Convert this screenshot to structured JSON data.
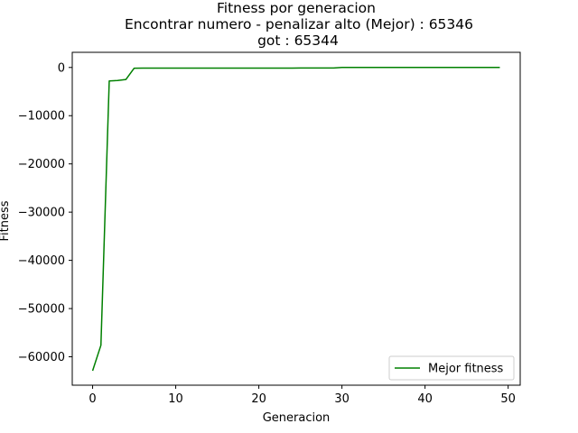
{
  "chart_data": {
    "type": "line",
    "title_lines": [
      "Fitness por generacion",
      "Encontrar numero - penalizar alto (Mejor) : 65346",
      "got : 65344"
    ],
    "xlabel": "Generacion",
    "ylabel": "Fitness",
    "xlim": [
      -2.45,
      51.45
    ],
    "ylim": [
      -65890,
      3140
    ],
    "xticks": [
      0,
      10,
      20,
      30,
      40,
      50
    ],
    "yticks": [
      0,
      -10000,
      -20000,
      -30000,
      -40000,
      -50000,
      -60000
    ],
    "xtick_labels": [
      "0",
      "10",
      "20",
      "30",
      "40",
      "50"
    ],
    "ytick_labels": [
      "0",
      "−10000",
      "−20000",
      "−30000",
      "−40000",
      "−50000",
      "−60000"
    ],
    "grid": false,
    "legend_position": "lower-right",
    "series": [
      {
        "name": "Mejor fitness",
        "color": "#008000",
        "x": [
          0,
          1,
          2,
          3,
          4,
          5,
          6,
          7,
          8,
          9,
          10,
          11,
          12,
          13,
          14,
          15,
          16,
          17,
          18,
          19,
          20,
          21,
          22,
          23,
          24,
          25,
          26,
          27,
          28,
          29,
          30,
          31,
          32,
          33,
          34,
          35,
          36,
          37,
          38,
          39,
          40,
          41,
          42,
          43,
          44,
          45,
          46,
          47,
          48,
          49
        ],
        "y": [
          -62900,
          -57600,
          -2800,
          -2700,
          -2500,
          -150,
          -140,
          -140,
          -140,
          -140,
          -140,
          -140,
          -140,
          -140,
          -140,
          -140,
          -140,
          -140,
          -140,
          -140,
          -140,
          -140,
          -140,
          -140,
          -140,
          -120,
          -120,
          -120,
          -110,
          -110,
          -2,
          -2,
          -2,
          -2,
          -2,
          -2,
          -2,
          -2,
          -2,
          -2,
          -2,
          -2,
          -2,
          -2,
          -2,
          -2,
          -2,
          -2,
          -2,
          -2
        ]
      }
    ]
  }
}
